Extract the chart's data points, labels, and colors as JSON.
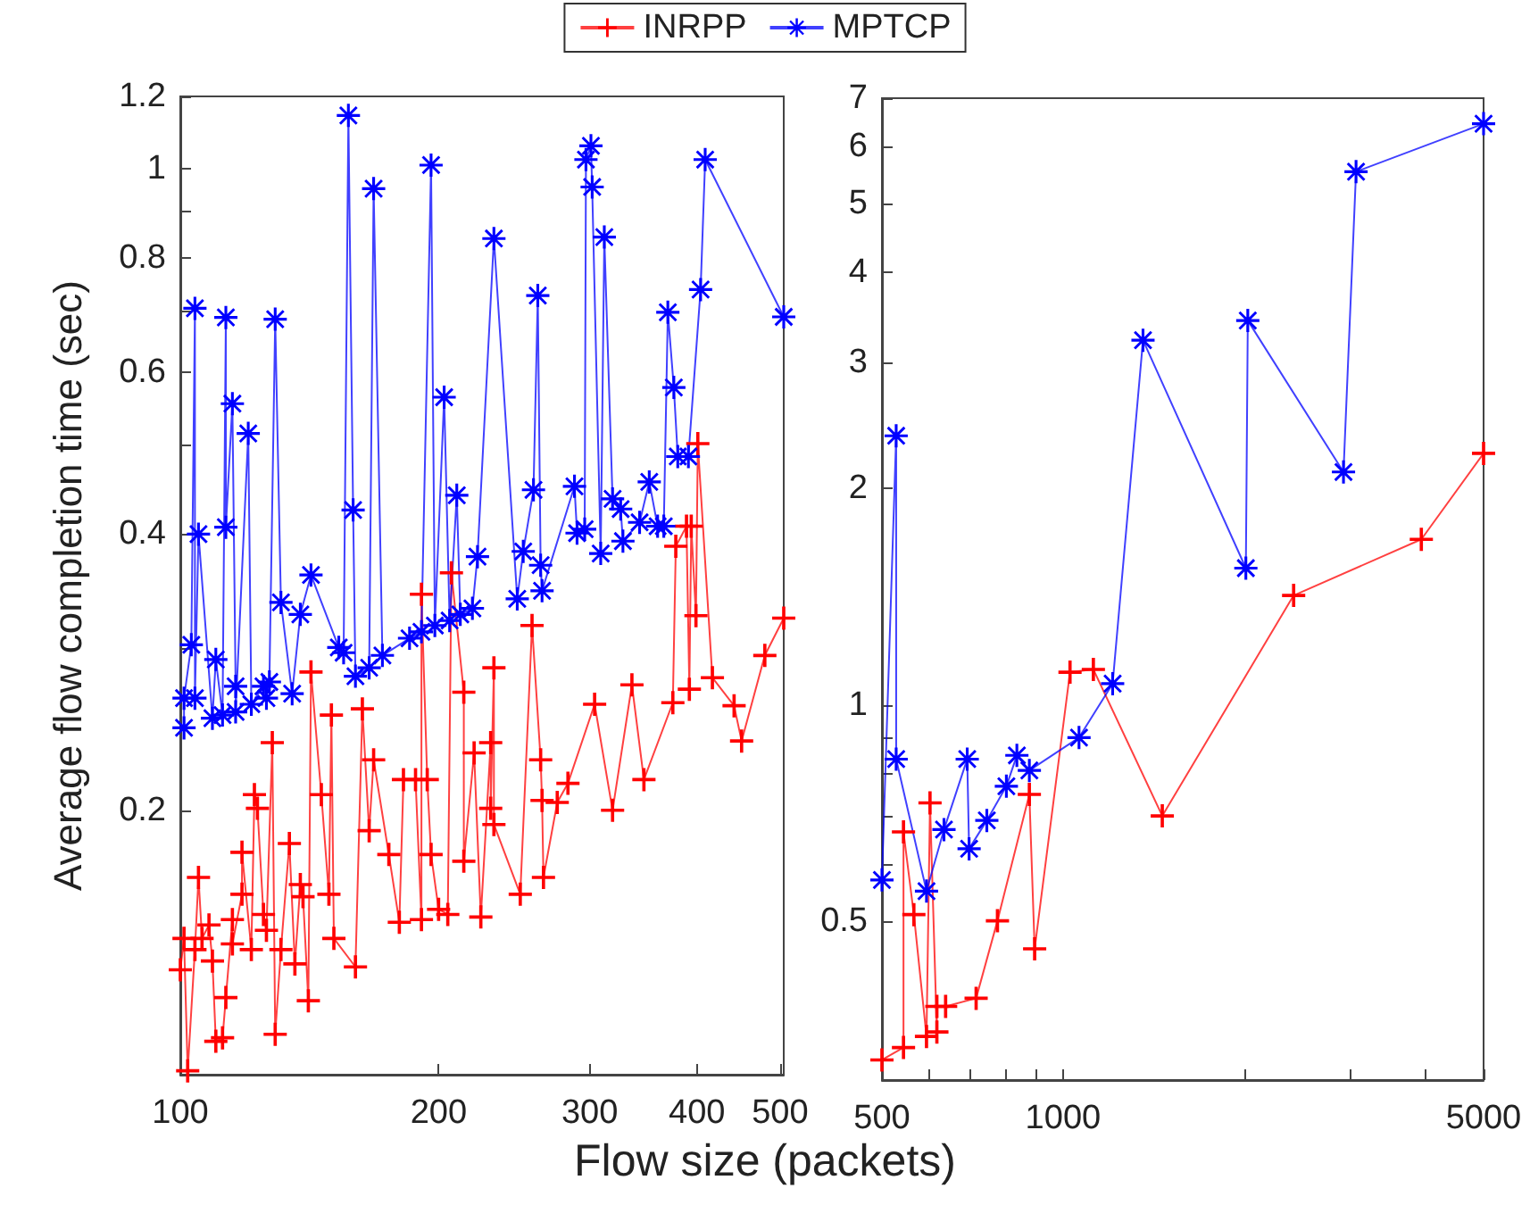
{
  "chart_data": [
    {
      "type": "line",
      "ylabel": "Average flow completion time (sec)",
      "xlabel": "Flow size (packets)",
      "log": "xy",
      "legend": "top",
      "xlim": [
        100,
        505
      ],
      "ylim": [
        0.103,
        1.2
      ],
      "xticks": [
        100,
        200,
        300,
        400,
        500
      ],
      "yticks": [
        0.2,
        {
          "value": 0.3,
          "label": null
        },
        0.4,
        {
          "value": 0.5,
          "label": null
        },
        0.6,
        {
          "value": 0.7,
          "label": null
        },
        0.8,
        {
          "value": 0.9,
          "label": null
        },
        1,
        1.2
      ],
      "series": [
        {
          "name": "INRPP",
          "color": "#ff0000",
          "marker": "cross",
          "x": [
            100,
            101,
            102,
            104,
            105,
            106,
            108,
            109,
            110,
            112,
            113,
            115,
            115,
            118,
            118,
            121,
            122,
            123,
            125,
            126,
            128,
            129,
            131,
            134,
            136,
            138,
            139,
            141,
            142,
            146,
            149,
            150,
            151,
            160,
            163,
            166,
            168,
            175,
            180,
            182,
            188,
            191,
            191,
            194,
            196,
            200,
            205,
            207,
            214,
            214,
            220,
            224,
            230,
            230,
            232,
            232,
            249,
            257,
            263,
            264,
            265,
            275,
            283,
            304,
            319,
            336,
            347,
            375,
            378,
            389,
            392,
            394,
            399,
            401,
            417,
            442,
            451,
            480,
            505
          ],
          "values": [
            0.134,
            0.145,
            0.104,
            0.141,
            0.169,
            0.145,
            0.15,
            0.137,
            0.112,
            0.113,
            0.125,
            0.152,
            0.143,
            0.162,
            0.18,
            0.141,
            0.208,
            0.201,
            0.154,
            0.148,
            0.237,
            0.114,
            0.141,
            0.184,
            0.136,
            0.166,
            0.161,
            0.124,
            0.283,
            0.208,
            0.162,
            0.254,
            0.145,
            0.135,
            0.258,
            0.19,
            0.227,
            0.179,
            0.151,
            0.216,
            0.216,
            0.152,
            0.344,
            0.216,
            0.179,
            0.156,
            0.154,
            0.363,
            0.269,
            0.176,
            0.231,
            0.153,
            0.237,
            0.201,
            0.286,
            0.193,
            0.162,
            0.318,
            0.227,
            0.205,
            0.169,
            0.204,
            0.214,
            0.261,
            0.2,
            0.274,
            0.216,
            0.262,
            0.388,
            0.408,
            0.271,
            0.408,
            0.326,
            0.502,
            0.279,
            0.26,
            0.238,
            0.295,
            0.324
          ]
        },
        {
          "name": "MPTCP",
          "color": "#0000ff",
          "marker": "star",
          "x": [
            101,
            101,
            103,
            104,
            104,
            105,
            109,
            110,
            112,
            113,
            113,
            115,
            116,
            116,
            120,
            121,
            125,
            126,
            127,
            129,
            131,
            135,
            138,
            142,
            153,
            155,
            157,
            159,
            160,
            166,
            168,
            172,
            185,
            191,
            196,
            198,
            203,
            206,
            210,
            212,
            219,
            222,
            232,
            247,
            251,
            258,
            261,
            263,
            264,
            288,
            290,
            296,
            297,
            301,
            302,
            309,
            312,
            319,
            326,
            328,
            343,
            352,
            360,
            366,
            370,
            376,
            380,
            391,
            404,
            409,
            505
          ],
          "values": [
            0.246,
            0.265,
            0.303,
            0.705,
            0.265,
            0.4,
            0.252,
            0.292,
            0.254,
            0.689,
            0.407,
            0.555,
            0.273,
            0.256,
            0.515,
            0.261,
            0.273,
            0.265,
            0.276,
            0.686,
            0.337,
            0.268,
            0.327,
            0.361,
            0.301,
            0.297,
            1.144,
            0.425,
            0.28,
            0.286,
            0.952,
            0.295,
            0.308,
            0.313,
            1.01,
            0.318,
            0.564,
            0.322,
            0.441,
            0.327,
            0.332,
            0.378,
            0.84,
            0.34,
            0.383,
            0.447,
            0.728,
            0.37,
            0.347,
            0.451,
            0.401,
            0.405,
            1.024,
            1.06,
            0.956,
            0.381,
            0.843,
            0.437,
            0.426,
            0.393,
            0.412,
            0.456,
            0.408,
            0.408,
            0.698,
            0.578,
            0.486,
            0.486,
            0.739,
            1.024,
            0.69
          ]
        }
      ]
    },
    {
      "type": "line",
      "log": "xy",
      "xlim": [
        500,
        5000
      ],
      "ylim": [
        0.3,
        7
      ],
      "xticks": [
        500,
        {
          "value": 600,
          "label": null
        },
        {
          "value": 700,
          "label": null
        },
        {
          "value": 800,
          "label": null
        },
        {
          "value": 900,
          "label": null
        },
        1000,
        {
          "value": 2000,
          "label": null
        },
        {
          "value": 3000,
          "label": null
        },
        {
          "value": 4000,
          "label": null
        },
        5000
      ],
      "yticks": [
        0.5,
        {
          "value": 0.6,
          "label": null
        },
        {
          "value": 0.7,
          "label": null
        },
        {
          "value": 0.8,
          "label": null
        },
        {
          "value": 0.9,
          "label": null
        },
        1,
        2,
        3,
        4,
        5,
        6,
        7
      ],
      "series": [
        {
          "color": "#ff0000",
          "marker": "cross",
          "x": [
            500,
            543,
            543,
            565,
            593,
            601,
            617,
            617,
            638,
            717,
            778,
            879,
            897,
            1027,
            1123,
            1462,
            2417,
            3940,
            5000
          ],
          "values": [
            0.32,
            0.333,
            0.665,
            0.51,
            0.345,
            0.73,
            0.35,
            0.38,
            0.38,
            0.39,
            0.5,
            0.75,
            0.457,
            1.11,
            1.12,
            0.7,
            1.42,
            1.7,
            2.24
          ]
        },
        {
          "color": "#0000ff",
          "marker": "star",
          "x": [
            500,
            528,
            528,
            593,
            634,
            693,
            698,
            747,
            805,
            838,
            879,
            1063,
            1209,
            1358,
            2013,
            2028,
            2925,
            3069,
            5000
          ],
          "values": [
            0.57,
            2.37,
            0.84,
            0.55,
            0.67,
            0.84,
            0.63,
            0.69,
            0.77,
            0.85,
            0.81,
            0.9,
            1.07,
            3.22,
            1.55,
            3.43,
            2.11,
            5.53,
            6.45
          ]
        }
      ]
    }
  ]
}
